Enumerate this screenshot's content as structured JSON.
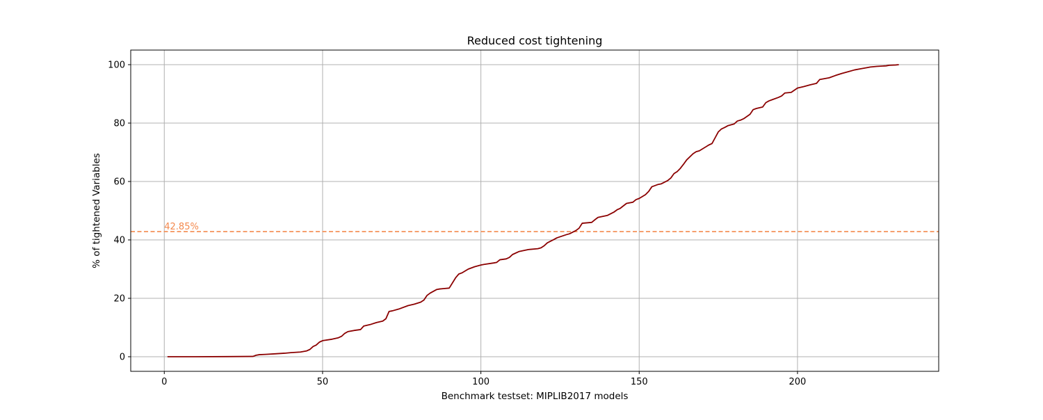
{
  "chart_data": {
    "type": "line",
    "title": "Reduced cost tightening",
    "xlabel": "Benchmark testset: MIPLIB2017 models",
    "ylabel": "% of tightened Variables",
    "xlim": [
      -10.6,
      244.6
    ],
    "ylim": [
      -5,
      105
    ],
    "x_ticks": [
      0,
      50,
      100,
      150,
      200
    ],
    "y_ticks": [
      0,
      20,
      40,
      60,
      80,
      100
    ],
    "grid": true,
    "line_color": "#8b0000",
    "reference_line": {
      "y": 42.85,
      "label": "42.85%",
      "color": "#f4894d",
      "style": "dashed"
    },
    "series": [
      {
        "x": [
          1,
          10,
          20,
          28,
          29,
          30,
          32,
          35,
          38,
          40,
          43,
          45,
          46,
          47,
          48,
          49,
          50,
          53,
          55,
          56,
          57,
          58,
          60,
          62,
          63,
          65,
          67,
          69,
          70,
          71,
          72,
          74,
          77,
          79,
          81,
          82,
          83,
          84,
          86,
          87,
          88,
          90,
          92,
          93,
          94,
          96,
          98,
          100,
          101,
          104,
          105,
          106,
          108,
          109,
          110,
          112,
          115,
          118,
          119,
          120,
          121,
          123,
          124,
          127,
          128,
          130,
          131,
          132,
          135,
          136,
          137,
          140,
          142,
          143,
          144,
          146,
          148,
          149,
          150,
          152,
          153,
          154,
          156,
          157,
          159,
          160,
          161,
          162,
          163,
          164,
          165,
          167,
          168,
          169,
          172,
          173,
          174,
          175,
          176,
          177,
          178,
          180,
          181,
          182,
          183,
          185,
          186,
          187,
          189,
          190,
          191,
          192,
          194,
          195,
          196,
          198,
          200,
          202,
          204,
          206,
          207,
          210,
          212,
          214,
          216,
          218,
          220,
          222,
          223,
          225,
          228,
          229,
          231,
          232
        ],
        "y": [
          0,
          0,
          0.05,
          0.1,
          0.5,
          0.7,
          0.8,
          1.0,
          1.2,
          1.4,
          1.6,
          2.0,
          2.5,
          3.5,
          4.0,
          5.0,
          5.5,
          6.0,
          6.5,
          7.0,
          8.0,
          8.6,
          9.0,
          9.3,
          10.5,
          11.0,
          11.7,
          12.2,
          13.0,
          15.5,
          15.7,
          16.3,
          17.5,
          18.0,
          18.7,
          19.4,
          21.0,
          21.8,
          23.0,
          23.2,
          23.3,
          23.5,
          27.0,
          28.3,
          28.7,
          30.0,
          30.8,
          31.4,
          31.6,
          32.1,
          32.3,
          33.2,
          33.5,
          34.0,
          35.0,
          36.0,
          36.7,
          37.0,
          37.3,
          38.0,
          39.0,
          40.1,
          40.7,
          41.8,
          42.1,
          43.2,
          44.0,
          45.7,
          46.0,
          46.9,
          47.7,
          48.4,
          49.5,
          50.3,
          50.8,
          52.5,
          52.9,
          53.8,
          54.2,
          55.5,
          56.6,
          58.2,
          59.0,
          59.2,
          60.3,
          61.2,
          62.7,
          63.4,
          64.5,
          65.9,
          67.4,
          69.5,
          70.2,
          70.5,
          72.5,
          73.0,
          75.0,
          77.0,
          78.0,
          78.5,
          79.1,
          79.7,
          80.7,
          81.0,
          81.5,
          83.0,
          84.6,
          85.0,
          85.5,
          87.0,
          87.6,
          88.0,
          88.8,
          89.3,
          90.3,
          90.5,
          92.0,
          92.5,
          93.1,
          93.6,
          94.9,
          95.5,
          96.3,
          97.0,
          97.6,
          98.2,
          98.6,
          99.0,
          99.2,
          99.4,
          99.6,
          99.8,
          99.9,
          100.0
        ]
      }
    ]
  }
}
